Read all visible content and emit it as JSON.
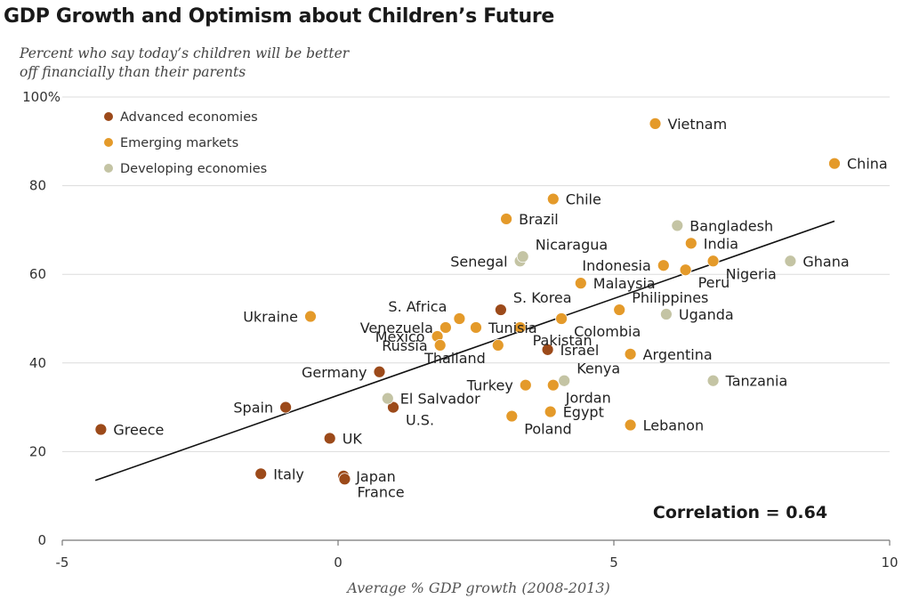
{
  "chart_data": {
    "type": "scatter",
    "title": "GDP Growth and Optimism about Children’s Future",
    "subtitle": "Percent who say today’s children will be better off financially than their parents",
    "xlabel": "Average % GDP growth (2008-2013)",
    "ylabel": "",
    "xlim": [
      -5,
      10
    ],
    "ylim": [
      0,
      100
    ],
    "xticks": [
      -5,
      0,
      5,
      10
    ],
    "yticks": [
      0,
      20,
      40,
      60,
      80,
      100
    ],
    "ytick_labels": [
      "0",
      "20",
      "40",
      "60",
      "80",
      "100%"
    ],
    "grid": "horizontal",
    "legend_position": "top-left",
    "annotation": "Correlation = 0.64",
    "trend_line": {
      "x1": -4.4,
      "y1": 13.5,
      "x2": 9.0,
      "y2": 72
    },
    "series": [
      {
        "name": "Advanced economies",
        "color": "#9c4a1a",
        "points": [
          {
            "label": "Greece",
            "x": -4.3,
            "y": 25
          },
          {
            "label": "Spain",
            "x": -0.95,
            "y": 30
          },
          {
            "label": "Italy",
            "x": -1.4,
            "y": 15
          },
          {
            "label": "UK",
            "x": -0.15,
            "y": 23
          },
          {
            "label": "Japan",
            "x": 0.1,
            "y": 14.5
          },
          {
            "label": "France",
            "x": 0.12,
            "y": 13.8
          },
          {
            "label": "Germany",
            "x": 0.75,
            "y": 38
          },
          {
            "label": "U.S.",
            "x": 1.0,
            "y": 30
          },
          {
            "label": "S. Korea",
            "x": 2.95,
            "y": 52
          },
          {
            "label": "Israel",
            "x": 3.8,
            "y": 43
          }
        ]
      },
      {
        "name": "Emerging markets",
        "color": "#e49a2a",
        "points": [
          {
            "label": "Vietnam",
            "x": 5.75,
            "y": 94
          },
          {
            "label": "China",
            "x": 9.0,
            "y": 85
          },
          {
            "label": "Chile",
            "x": 3.9,
            "y": 77
          },
          {
            "label": "Brazil",
            "x": 3.05,
            "y": 72.5
          },
          {
            "label": "India",
            "x": 6.4,
            "y": 67
          },
          {
            "label": "Indonesia",
            "x": 5.9,
            "y": 62
          },
          {
            "label": "Peru",
            "x": 6.3,
            "y": 61
          },
          {
            "label": "Nigeria",
            "x": 6.8,
            "y": 63
          },
          {
            "label": "Malaysia",
            "x": 4.4,
            "y": 58
          },
          {
            "label": "Philippines",
            "x": 5.1,
            "y": 52
          },
          {
            "label": "Colombia",
            "x": 4.05,
            "y": 50
          },
          {
            "label": "S. Africa",
            "x": 2.2,
            "y": 50
          },
          {
            "label": "Venezuela",
            "x": 1.95,
            "y": 48
          },
          {
            "label": "Tunisia",
            "x": 2.5,
            "y": 48
          },
          {
            "label": "Pakistan",
            "x": 3.3,
            "y": 48
          },
          {
            "label": "Mexico",
            "x": 1.8,
            "y": 46
          },
          {
            "label": "Russia",
            "x": 1.85,
            "y": 44
          },
          {
            "label": "Thailand",
            "x": 2.9,
            "y": 44
          },
          {
            "label": "Ukraine",
            "x": -0.5,
            "y": 50.5
          },
          {
            "label": "Argentina",
            "x": 5.3,
            "y": 42
          },
          {
            "label": "Turkey",
            "x": 3.4,
            "y": 35
          },
          {
            "label": "Jordan",
            "x": 3.9,
            "y": 35
          },
          {
            "label": "Egypt",
            "x": 3.85,
            "y": 29
          },
          {
            "label": "Poland",
            "x": 3.15,
            "y": 28
          },
          {
            "label": "Lebanon",
            "x": 5.3,
            "y": 26
          }
        ]
      },
      {
        "name": "Developing economies",
        "color": "#c4c4a4",
        "points": [
          {
            "label": "Bangladesh",
            "x": 6.15,
            "y": 71
          },
          {
            "label": "Ghana",
            "x": 8.2,
            "y": 63
          },
          {
            "label": "Senegal",
            "x": 3.3,
            "y": 63
          },
          {
            "label": "Nicaragua",
            "x": 3.35,
            "y": 64
          },
          {
            "label": "Uganda",
            "x": 5.95,
            "y": 51
          },
          {
            "label": "Kenya",
            "x": 4.1,
            "y": 36
          },
          {
            "label": "Tanzania",
            "x": 6.8,
            "y": 36
          },
          {
            "label": "El Salvador",
            "x": 0.9,
            "y": 32
          }
        ]
      }
    ]
  }
}
